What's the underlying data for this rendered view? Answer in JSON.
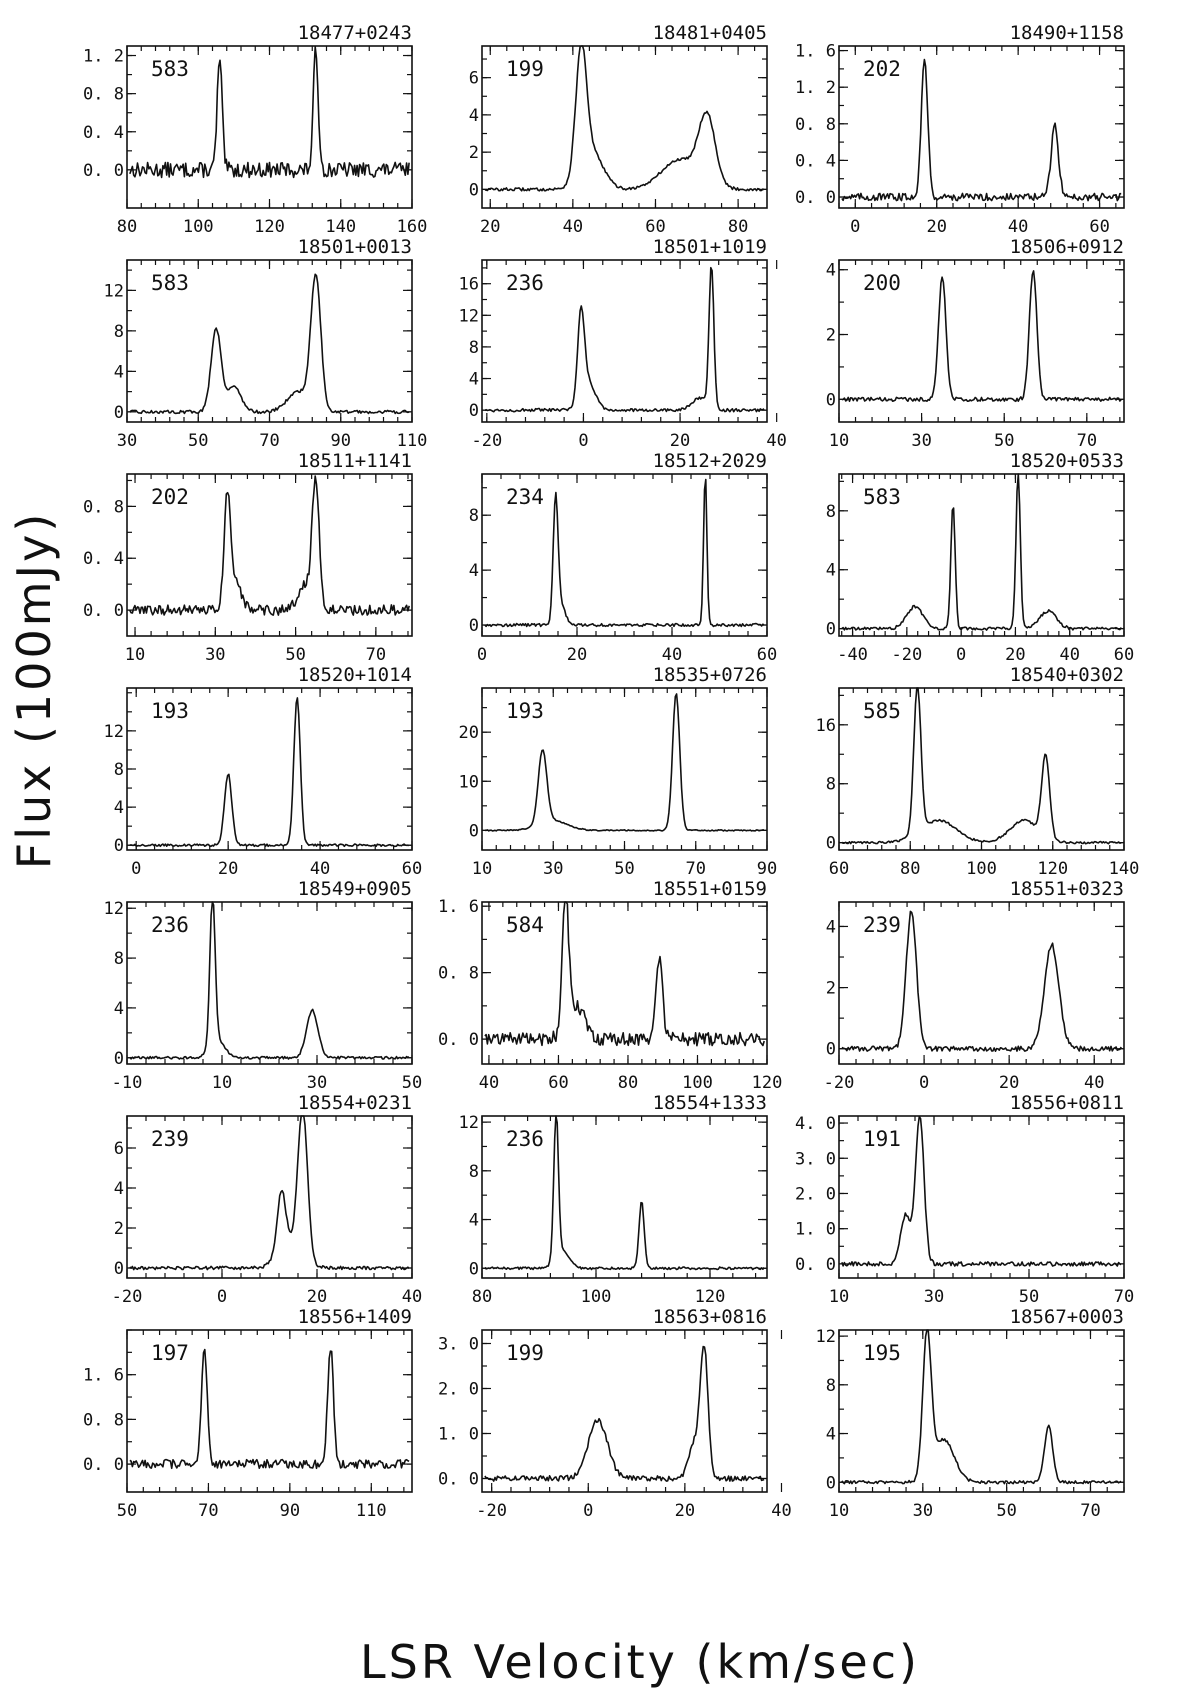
{
  "figure": {
    "ylabel": "Flux (100mJy)",
    "xlabel": "LSR Velocity (km/sec)"
  },
  "chart_data": [
    {
      "type": "line",
      "title": "18477+0243",
      "annotation": "583",
      "xlim": [
        80,
        160
      ],
      "ylim": [
        -0.4,
        1.3
      ],
      "xticks": [
        80,
        100,
        120,
        140,
        160
      ],
      "yticks": [
        0.0,
        0.4,
        0.8,
        1.2
      ],
      "ytick_labels": [
        "0. 0",
        "0. 4",
        "0. 8",
        "1. 2"
      ],
      "noise": 0.08,
      "peaks": [
        {
          "v": 106,
          "amp": 1.15,
          "w": 0.7
        },
        {
          "v": 133,
          "amp": 1.25,
          "w": 0.7
        }
      ]
    },
    {
      "type": "line",
      "title": "18481+0405",
      "annotation": "199",
      "xlim": [
        18,
        87
      ],
      "ylim": [
        -1,
        7.7
      ],
      "xticks": [
        20,
        40,
        60,
        80
      ],
      "yticks": [
        0,
        2,
        4,
        6
      ],
      "ytick_labels": [
        "0",
        "2",
        "4",
        "6"
      ],
      "noise": 0.08,
      "peaks": [
        {
          "v": 42,
          "amp": 6.6,
          "w": 1.3
        },
        {
          "v": 44.5,
          "amp": 2.0,
          "w": 2.8
        },
        {
          "v": 72.5,
          "amp": 3.6,
          "w": 2.0
        },
        {
          "v": 66,
          "amp": 1.6,
          "w": 4.5
        }
      ]
    },
    {
      "type": "line",
      "title": "18490+1158",
      "annotation": "202",
      "xlim": [
        -4,
        66
      ],
      "ylim": [
        -0.12,
        1.65
      ],
      "xticks": [
        0,
        20,
        40,
        60
      ],
      "yticks": [
        0.0,
        0.4,
        0.8,
        1.2,
        1.6
      ],
      "ytick_labels": [
        "0. 0",
        "0. 4",
        "0. 8",
        "1. 2",
        "1. 6"
      ],
      "noise": 0.04,
      "peaks": [
        {
          "v": 17,
          "amp": 1.5,
          "w": 0.8
        },
        {
          "v": 49,
          "amp": 0.78,
          "w": 0.9
        }
      ]
    },
    {
      "type": "line",
      "title": "18501+0013",
      "annotation": "583",
      "xlim": [
        30,
        110
      ],
      "ylim": [
        -1,
        15
      ],
      "xticks": [
        30,
        50,
        70,
        90,
        110
      ],
      "yticks": [
        0,
        4,
        8,
        12
      ],
      "ytick_labels": [
        "0",
        "4",
        "8",
        "12"
      ],
      "noise": 0.15,
      "peaks": [
        {
          "v": 55,
          "amp": 8.2,
          "w": 1.4
        },
        {
          "v": 60,
          "amp": 2.5,
          "w": 2.0
        },
        {
          "v": 83,
          "amp": 13.2,
          "w": 1.4
        },
        {
          "v": 78,
          "amp": 2.0,
          "w": 3.0
        }
      ]
    },
    {
      "type": "line",
      "title": "18501+1019",
      "annotation": "236",
      "xlim": [
        -21,
        38
      ],
      "ylim": [
        -1.5,
        19
      ],
      "xticks": [
        -20,
        0,
        20,
        40
      ],
      "yticks": [
        0,
        4,
        8,
        12,
        16
      ],
      "ytick_labels": [
        "0",
        "4",
        "8",
        "12",
        "16"
      ],
      "noise": 0.2,
      "peaks": [
        {
          "v": -0.5,
          "amp": 11,
          "w": 0.7
        },
        {
          "v": 1,
          "amp": 3.5,
          "w": 1.5
        },
        {
          "v": 26.5,
          "amp": 18,
          "w": 0.5
        },
        {
          "v": 24,
          "amp": 1.5,
          "w": 1.5
        }
      ]
    },
    {
      "type": "line",
      "title": "18506+0912",
      "annotation": "200",
      "xlim": [
        10,
        79
      ],
      "ylim": [
        -0.7,
        4.3
      ],
      "xticks": [
        10,
        30,
        50,
        70
      ],
      "yticks": [
        0,
        2,
        4
      ],
      "ytick_labels": [
        "0",
        "2",
        "4"
      ],
      "noise": 0.06,
      "peaks": [
        {
          "v": 35,
          "amp": 3.8,
          "w": 0.9
        },
        {
          "v": 57,
          "amp": 4.0,
          "w": 0.9
        }
      ]
    },
    {
      "type": "line",
      "title": "18511+1141",
      "annotation": "202",
      "xlim": [
        8,
        79
      ],
      "ylim": [
        -0.2,
        1.05
      ],
      "xticks": [
        10,
        30,
        50,
        70
      ],
      "yticks": [
        0.0,
        0.4,
        0.8
      ],
      "ytick_labels": [
        "0. 0",
        "0. 4",
        "0. 8"
      ],
      "noise": 0.04,
      "peaks": [
        {
          "v": 33,
          "amp": 0.85,
          "w": 0.8
        },
        {
          "v": 35,
          "amp": 0.2,
          "w": 1.5
        },
        {
          "v": 55,
          "amp": 1.0,
          "w": 0.9
        },
        {
          "v": 52,
          "amp": 0.2,
          "w": 1.5
        }
      ]
    },
    {
      "type": "line",
      "title": "18512+2029",
      "annotation": "234",
      "xlim": [
        0,
        60
      ],
      "ylim": [
        -0.8,
        11
      ],
      "xticks": [
        0,
        20,
        40,
        60
      ],
      "yticks": [
        0,
        4,
        8
      ],
      "ytick_labels": [
        "0",
        "4",
        "8"
      ],
      "noise": 0.1,
      "peaks": [
        {
          "v": 15.5,
          "amp": 8.8,
          "w": 0.5
        },
        {
          "v": 16.5,
          "amp": 1.5,
          "w": 1.0
        },
        {
          "v": 47,
          "amp": 11,
          "w": 0.35
        }
      ]
    },
    {
      "type": "line",
      "title": "18520+0533",
      "annotation": "583",
      "xlim": [
        -45,
        60
      ],
      "ylim": [
        -0.5,
        10.5
      ],
      "xticks": [
        -40,
        -20,
        0,
        20,
        40,
        60
      ],
      "yticks": [
        0,
        4,
        8
      ],
      "ytick_labels": [
        "0",
        "4",
        "8"
      ],
      "noise": 0.1,
      "peaks": [
        {
          "v": -3,
          "amp": 8.4,
          "w": 0.8
        },
        {
          "v": 21,
          "amp": 10.5,
          "w": 0.8
        },
        {
          "v": -17,
          "amp": 1.5,
          "w": 3
        },
        {
          "v": 32,
          "amp": 1.2,
          "w": 3
        }
      ]
    },
    {
      "type": "line",
      "title": "18520+1014",
      "annotation": "193",
      "xlim": [
        -2,
        60
      ],
      "ylim": [
        -0.5,
        16.5
      ],
      "xticks": [
        0,
        20,
        40,
        60
      ],
      "yticks": [
        0,
        4,
        8,
        12
      ],
      "ytick_labels": [
        "0",
        "4",
        "8",
        "12"
      ],
      "noise": 0.12,
      "peaks": [
        {
          "v": 20,
          "amp": 7.5,
          "w": 0.8
        },
        {
          "v": 35,
          "amp": 15.5,
          "w": 0.7
        }
      ]
    },
    {
      "type": "line",
      "title": "18535+0726",
      "annotation": "193",
      "xlim": [
        10,
        90
      ],
      "ylim": [
        -4,
        29
      ],
      "xticks": [
        10,
        30,
        50,
        70,
        90
      ],
      "yticks": [
        0,
        10,
        20
      ],
      "ytick_labels": [
        "0",
        "10",
        "20"
      ],
      "noise": 0.12,
      "peaks": [
        {
          "v": 27,
          "amp": 15,
          "w": 1.2
        },
        {
          "v": 64.5,
          "amp": 28,
          "w": 1.0
        },
        {
          "v": 30,
          "amp": 2,
          "w": 4
        }
      ]
    },
    {
      "type": "line",
      "title": "18540+0302",
      "annotation": "585",
      "xlim": [
        60,
        140
      ],
      "ylim": [
        -1,
        21
      ],
      "xticks": [
        60,
        80,
        100,
        120,
        140
      ],
      "yticks": [
        0,
        8,
        16
      ],
      "ytick_labels": [
        "0",
        "8",
        "16"
      ],
      "noise": 0.15,
      "peaks": [
        {
          "v": 82,
          "amp": 20,
          "w": 1.0
        },
        {
          "v": 88,
          "amp": 3,
          "w": 5
        },
        {
          "v": 118,
          "amp": 11,
          "w": 1.1
        },
        {
          "v": 112,
          "amp": 3,
          "w": 4
        }
      ]
    },
    {
      "type": "line",
      "title": "18549+0905",
      "annotation": "236",
      "xlim": [
        -10,
        50
      ],
      "ylim": [
        -0.5,
        12.5
      ],
      "xticks": [
        -10,
        10,
        30,
        50
      ],
      "yticks": [
        0,
        4,
        8,
        12
      ],
      "ytick_labels": [
        "0",
        "4",
        "8",
        "12"
      ],
      "noise": 0.1,
      "peaks": [
        {
          "v": 8,
          "amp": 12,
          "w": 0.55
        },
        {
          "v": 9,
          "amp": 1.5,
          "w": 1.5
        },
        {
          "v": 29,
          "amp": 3.8,
          "w": 1.2
        }
      ]
    },
    {
      "type": "line",
      "title": "18551+0159",
      "annotation": "584",
      "xlim": [
        38,
        120
      ],
      "ylim": [
        -0.3,
        1.65
      ],
      "xticks": [
        40,
        60,
        80,
        100,
        120
      ],
      "yticks": [
        0.0,
        0.8,
        1.6
      ],
      "ytick_labels": [
        "0. 0",
        "0. 8",
        "1. 6"
      ],
      "noise": 0.08,
      "peaks": [
        {
          "v": 62,
          "amp": 1.6,
          "w": 0.9
        },
        {
          "v": 65,
          "amp": 0.4,
          "w": 2.5
        },
        {
          "v": 89,
          "amp": 1.0,
          "w": 0.9
        }
      ]
    },
    {
      "type": "line",
      "title": "18551+0323",
      "annotation": "239",
      "xlim": [
        -20,
        47
      ],
      "ylim": [
        -0.5,
        4.8
      ],
      "xticks": [
        -20,
        0,
        20,
        40
      ],
      "yticks": [
        0,
        2,
        4
      ],
      "ytick_labels": [
        "0",
        "2",
        "4"
      ],
      "noise": 0.08,
      "peaks": [
        {
          "v": -3,
          "amp": 4.5,
          "w": 1.2
        },
        {
          "v": 30,
          "amp": 3.4,
          "w": 1.7
        }
      ]
    },
    {
      "type": "line",
      "title": "18554+0231",
      "annotation": "239",
      "xlim": [
        -20,
        40
      ],
      "ylim": [
        -0.5,
        7.6
      ],
      "xticks": [
        -20,
        0,
        20,
        40
      ],
      "yticks": [
        0,
        2,
        4,
        6
      ],
      "ytick_labels": [
        "0",
        "2",
        "4",
        "6"
      ],
      "noise": 0.08,
      "peaks": [
        {
          "v": 12.5,
          "amp": 3.0,
          "w": 0.9
        },
        {
          "v": 17,
          "amp": 7.4,
          "w": 1.0
        },
        {
          "v": 14.5,
          "amp": 1.2,
          "w": 2.5
        }
      ]
    },
    {
      "type": "line",
      "title": "18554+1333",
      "annotation": "236",
      "xlim": [
        80,
        130
      ],
      "ylim": [
        -0.8,
        12.5
      ],
      "xticks": [
        80,
        100,
        120
      ],
      "yticks": [
        0,
        4,
        8,
        12
      ],
      "ytick_labels": [
        "0",
        "4",
        "8",
        "12"
      ],
      "noise": 0.1,
      "peaks": [
        {
          "v": 93,
          "amp": 12,
          "w": 0.4
        },
        {
          "v": 94,
          "amp": 1.5,
          "w": 1.2
        },
        {
          "v": 108,
          "amp": 5.5,
          "w": 0.45
        }
      ]
    },
    {
      "type": "line",
      "title": "18556+0811",
      "annotation": "191",
      "xlim": [
        10,
        70
      ],
      "ylim": [
        -0.4,
        4.2
      ],
      "xticks": [
        10,
        30,
        50,
        70
      ],
      "yticks": [
        0.0,
        1.0,
        2.0,
        3.0,
        4.0
      ],
      "ytick_labels": [
        "0. 0",
        "1. 0",
        "2. 0",
        "3. 0",
        "4. 0"
      ],
      "noise": 0.06,
      "peaks": [
        {
          "v": 27,
          "amp": 4.2,
          "w": 0.9
        },
        {
          "v": 24,
          "amp": 1.4,
          "w": 1.0
        }
      ]
    },
    {
      "type": "line",
      "title": "18556+1409",
      "annotation": "197",
      "xlim": [
        50,
        120
      ],
      "ylim": [
        -0.5,
        2.4
      ],
      "xticks": [
        50,
        70,
        90,
        110
      ],
      "yticks": [
        0.0,
        0.8,
        1.6
      ],
      "ytick_labels": [
        "0. 0",
        "0. 8",
        "1. 6"
      ],
      "noise": 0.08,
      "peaks": [
        {
          "v": 69,
          "amp": 2.1,
          "w": 0.7
        },
        {
          "v": 100,
          "amp": 2.1,
          "w": 0.7
        }
      ]
    },
    {
      "type": "line",
      "title": "18563+0816",
      "annotation": "199",
      "xlim": [
        -22,
        37
      ],
      "ylim": [
        -0.3,
        3.3
      ],
      "xticks": [
        -20,
        0,
        20,
        40
      ],
      "yticks": [
        0.0,
        1.0,
        2.0,
        3.0
      ],
      "ytick_labels": [
        "0. 0",
        "1. 0",
        "2. 0",
        "3. 0"
      ],
      "noise": 0.06,
      "peaks": [
        {
          "v": 2,
          "amp": 1.3,
          "w": 2.0
        },
        {
          "v": 24,
          "amp": 2.8,
          "w": 0.8
        },
        {
          "v": 22,
          "amp": 0.8,
          "w": 1.2
        }
      ]
    },
    {
      "type": "line",
      "title": "18567+0003",
      "annotation": "195",
      "xlim": [
        10,
        78
      ],
      "ylim": [
        -0.8,
        12.5
      ],
      "xticks": [
        10,
        30,
        50,
        70
      ],
      "yticks": [
        0,
        4,
        8,
        12
      ],
      "ytick_labels": [
        "0",
        "4",
        "8",
        "12"
      ],
      "noise": 0.12,
      "peaks": [
        {
          "v": 31,
          "amp": 11.8,
          "w": 1.0
        },
        {
          "v": 35,
          "amp": 3.5,
          "w": 2.5
        },
        {
          "v": 60,
          "amp": 4.6,
          "w": 1.0
        }
      ]
    }
  ]
}
